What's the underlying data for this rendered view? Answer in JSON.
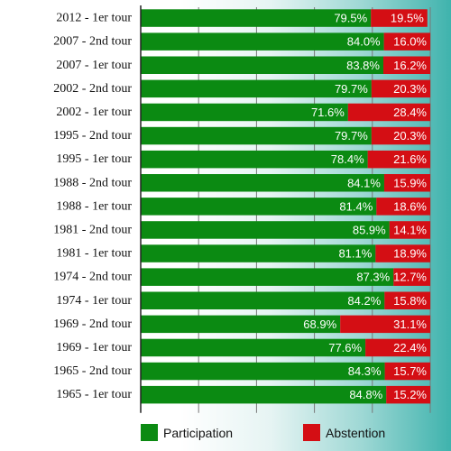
{
  "chart_data": {
    "type": "bar",
    "orientation": "horizontal",
    "stacked": true,
    "categories": [
      "2012 - 1er tour",
      "2007 - 2nd tour",
      "2007 - 1er tour",
      "2002 - 2nd tour",
      "2002 - 1er tour",
      "1995 - 2nd tour",
      "1995 - 1er tour",
      "1988 - 2nd tour",
      "1988 - 1er tour",
      "1981 - 2nd tour",
      "1981 - 1er tour",
      "1974 - 2nd tour",
      "1974 - 1er tour",
      "1969 - 2nd tour",
      "1969 - 1er tour",
      "1965 - 2nd tour",
      "1965 - 1er tour"
    ],
    "series": [
      {
        "name": "Participation",
        "color": "#0b8a12",
        "values": [
          79.5,
          84.0,
          83.8,
          79.7,
          71.6,
          79.7,
          78.4,
          84.1,
          81.4,
          85.9,
          81.1,
          87.3,
          84.2,
          68.9,
          77.6,
          84.3,
          84.8
        ],
        "labels": [
          "79.5%",
          "84.0%",
          "83.8%",
          "79.7%",
          "71.6%",
          "79.7%",
          "78.4%",
          "84.1%",
          "81.4%",
          "85.9%",
          "81.1%",
          "87.3%",
          "84.2%",
          "68.9%",
          "77.6%",
          "84.3%",
          "84.8%"
        ]
      },
      {
        "name": "Abstention",
        "color": "#d40e14",
        "values": [
          19.5,
          16.0,
          16.2,
          20.3,
          28.4,
          20.3,
          21.6,
          15.9,
          18.6,
          14.1,
          18.9,
          12.7,
          15.8,
          31.1,
          22.4,
          15.7,
          15.2
        ],
        "labels": [
          "19.5%",
          "16.0%",
          "16.2%",
          "20.3%",
          "28.4%",
          "20.3%",
          "21.6%",
          "15.9%",
          "18.6%",
          "14.1%",
          "18.9%",
          "12.7%",
          "15.8%",
          "31.1%",
          "22.4%",
          "15.7%",
          "15.2%"
        ]
      }
    ],
    "xlim": [
      0,
      100
    ],
    "grid": true,
    "legend_position": "bottom",
    "colors": {
      "grid": "#777777",
      "axis": "#222222",
      "value_text": "#ffffff"
    }
  }
}
